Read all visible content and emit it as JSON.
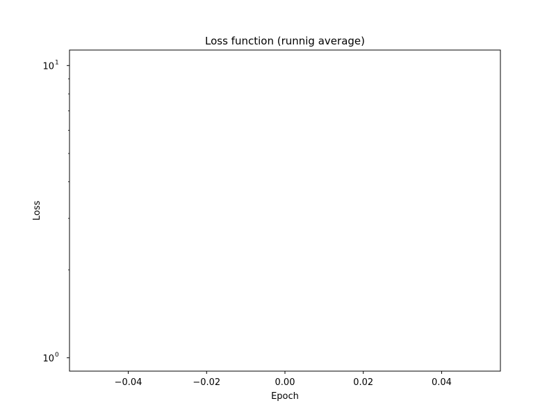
{
  "chart_data": {
    "type": "line",
    "title": "Loss function (runnig average)",
    "xlabel": "Epoch",
    "ylabel": "Loss",
    "x_scale": "linear",
    "y_scale": "log",
    "xlim": [
      -0.055,
      0.055
    ],
    "ylim": [
      0.9,
      11.3
    ],
    "x_ticks": [
      {
        "value": -0.04,
        "label": "−0.04"
      },
      {
        "value": -0.02,
        "label": "−0.02"
      },
      {
        "value": 0.0,
        "label": "0.00"
      },
      {
        "value": 0.02,
        "label": "0.02"
      },
      {
        "value": 0.04,
        "label": "0.04"
      }
    ],
    "y_ticks": [
      {
        "value": 1,
        "base": "10",
        "exponent": "0"
      },
      {
        "value": 10,
        "base": "10",
        "exponent": "1"
      }
    ],
    "y_minor_ticks": [
      2,
      3,
      4,
      5,
      6,
      7,
      8,
      9
    ],
    "series": [
      {
        "values": [],
        "color": "#1f77b4"
      }
    ],
    "grid": false,
    "legend": "none"
  }
}
